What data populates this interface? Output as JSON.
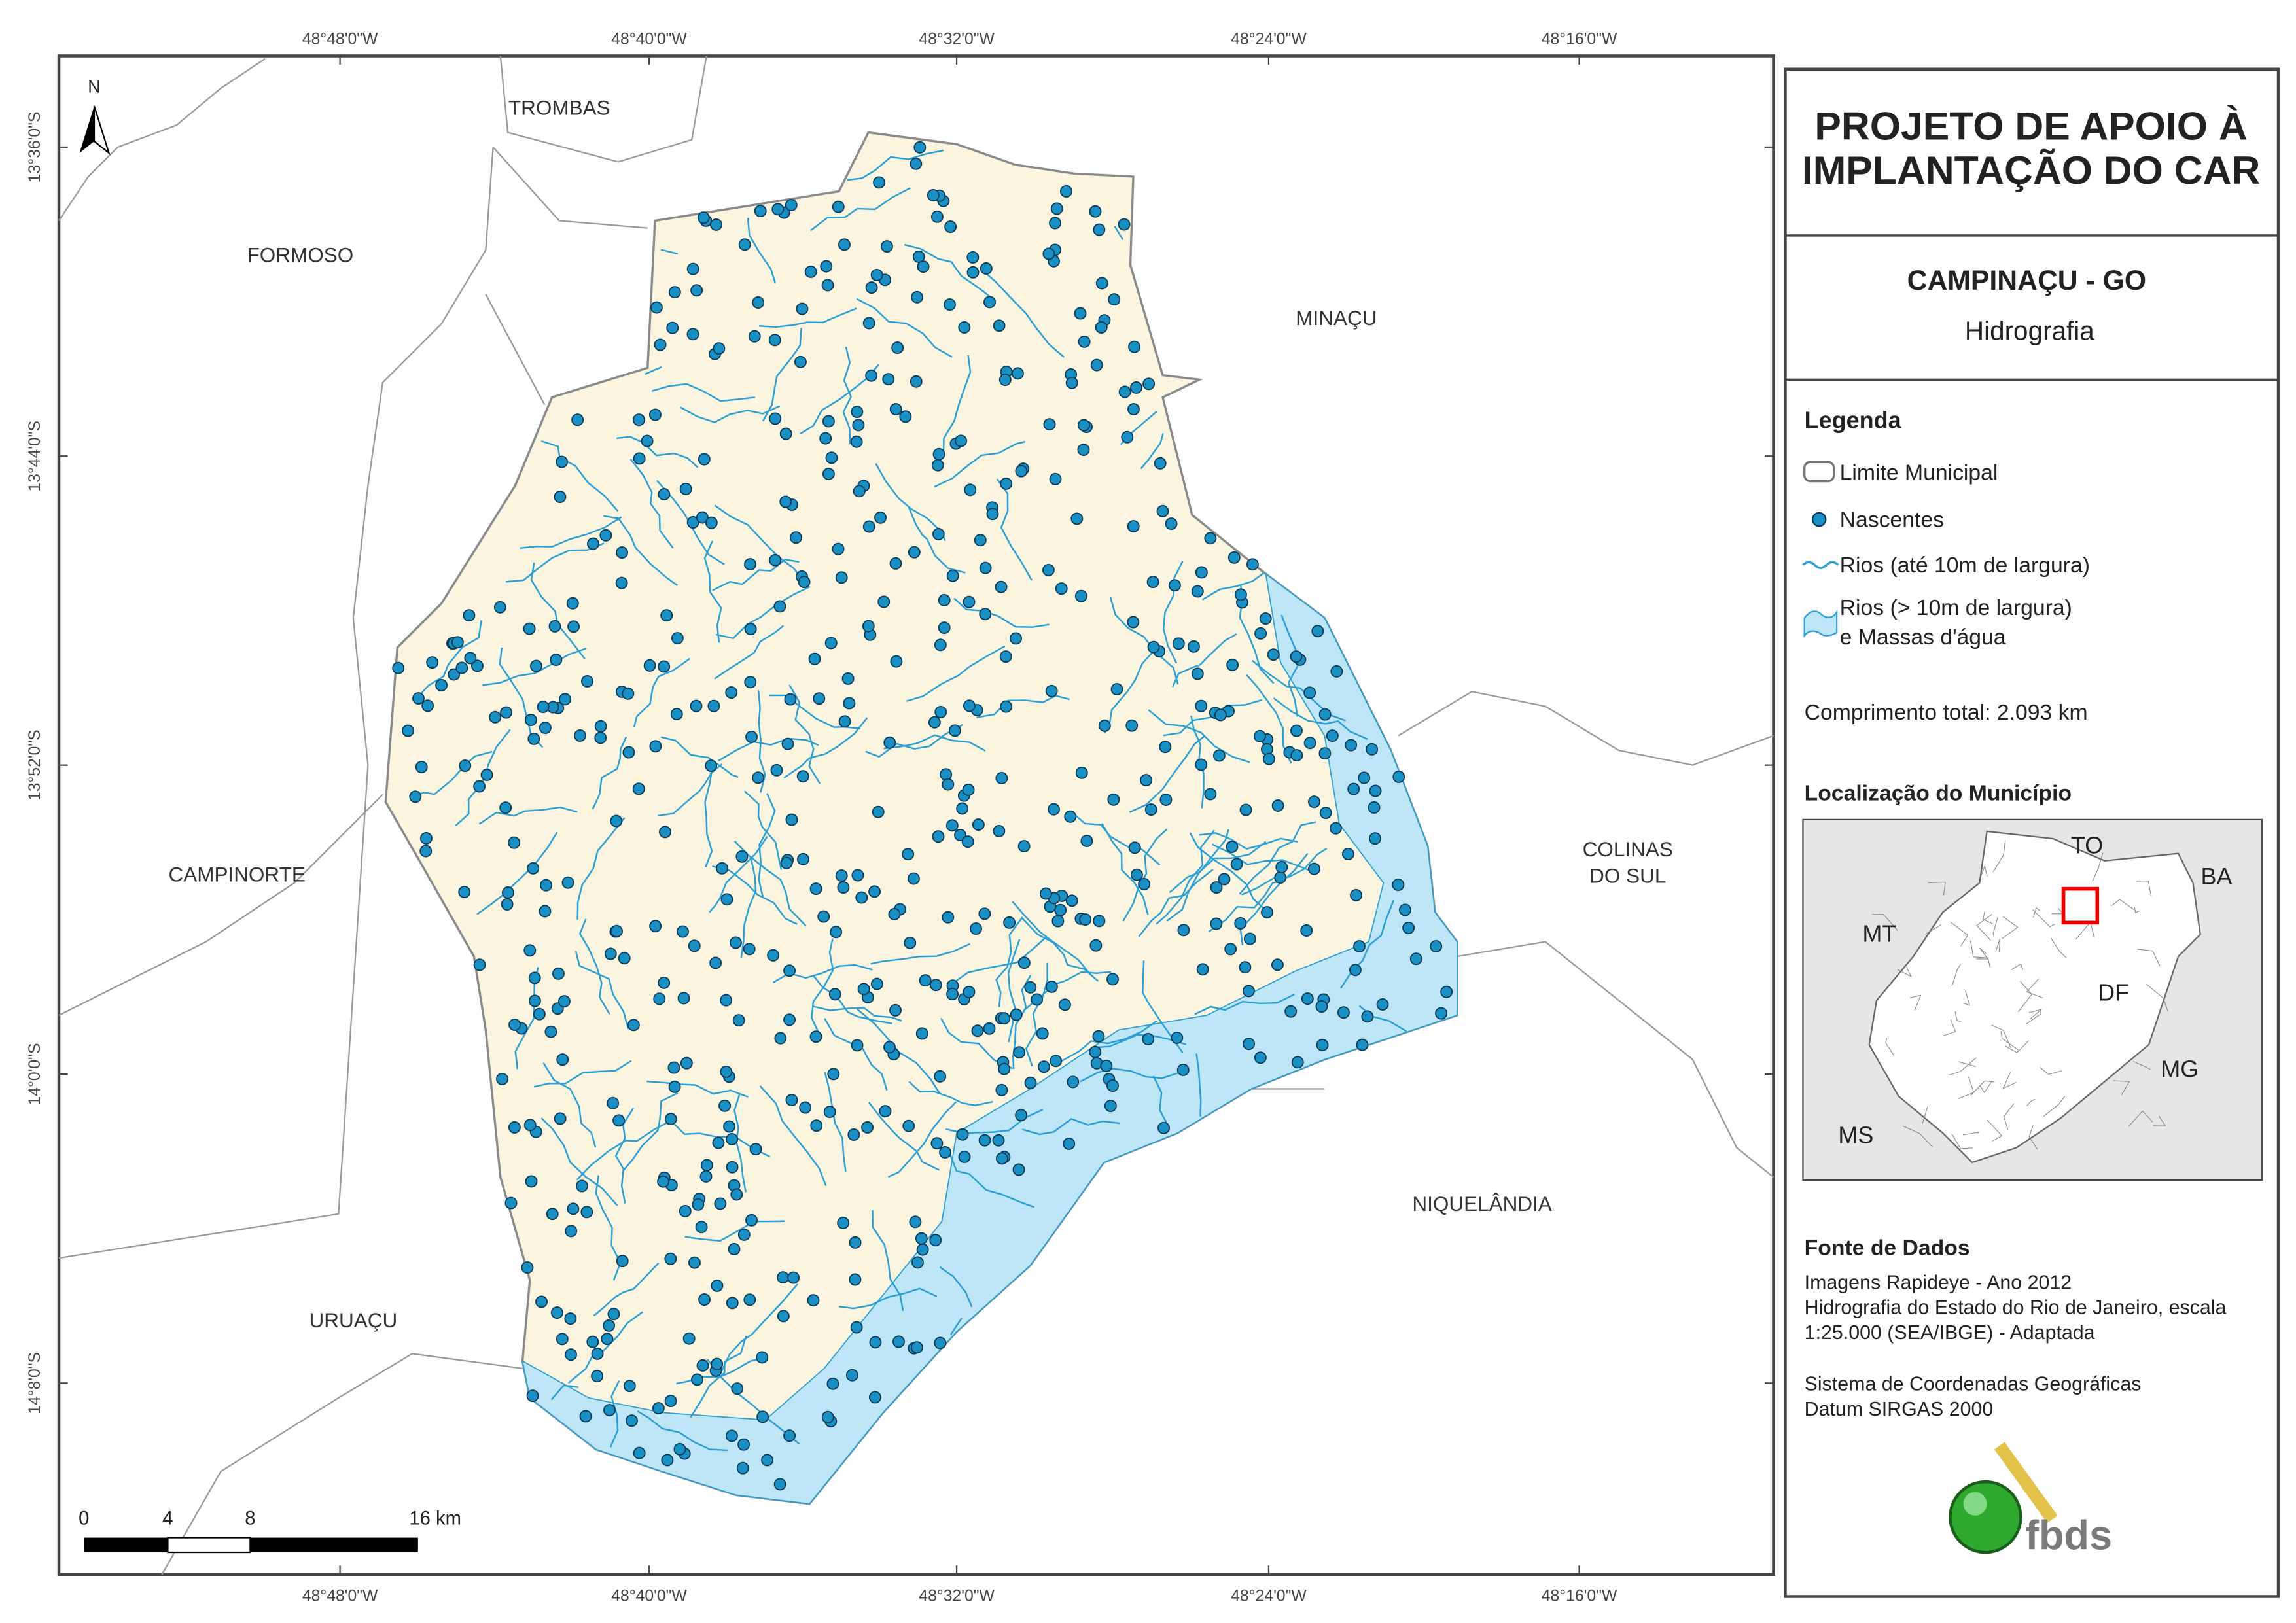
{
  "title": {
    "line1": "PROJETO DE APOIO À",
    "line2": "IMPLANTAÇÃO DO CAR"
  },
  "municipality": "CAMPINAÇU - GO",
  "theme": "Hidrografia",
  "legend": {
    "title": "Legenda",
    "items": [
      "Limite Municipal",
      "Nascentes",
      "Rios (até 10m de largura)",
      "Rios (> 10m de largura)",
      "e Massas d'água"
    ]
  },
  "total_length": "Comprimento total:  2.093 km",
  "location": {
    "title": "Localização do Município",
    "labels": [
      "TO",
      "BA",
      "MT",
      "DF",
      "MG",
      "MS"
    ]
  },
  "sources": {
    "title": "Fonte de Dados",
    "lines": [
      "Imagens Rapideye - Ano 2012",
      "Hidrografia do Estado do Rio de Janeiro, escala",
      "1:25.000 (SEA/IBGE) - Adaptada",
      "Sistema de Coordenadas Geográficas",
      "Datum SIRGAS 2000"
    ]
  },
  "logo": "fbds",
  "map": {
    "north": "N",
    "longitudes": [
      "48°48'0\"W",
      "48°40'0\"W",
      "48°32'0\"W",
      "48°24'0\"W",
      "48°16'0\"W"
    ],
    "latitudes": [
      "13°36'0\"S",
      "13°44'0\"S",
      "13°52'0\"S",
      "14°0'0\"S",
      "14°8'0\"S"
    ],
    "places": [
      "TROMBAS",
      "FORMOSO",
      "MINAÇU",
      "COLINAS",
      "DO SUL",
      "CAMPINORTE",
      "NIQUELÂNDIA",
      "URUAÇU"
    ],
    "scale_labels": [
      "0",
      "4",
      "8",
      "16 km"
    ]
  }
}
